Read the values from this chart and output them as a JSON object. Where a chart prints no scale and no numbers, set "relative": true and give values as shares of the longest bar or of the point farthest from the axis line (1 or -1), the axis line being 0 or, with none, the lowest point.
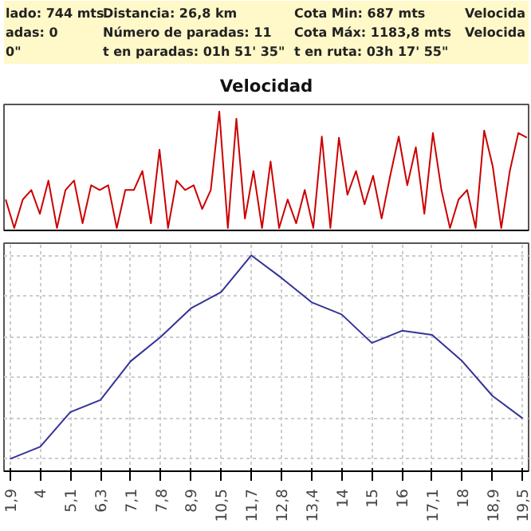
{
  "chart_data": [
    {
      "type": "other",
      "annotations": [
        "lado: 744 mts",
        "Distancia: 26,8 km",
        "Cota Min: 687 mts",
        "Velocida",
        "adas: 0",
        "Número de paradas: 11",
        "Cota Máx: 1183,8 mts",
        "Velocida",
        "0\"",
        "t en paradas: 01h 51' 35\"",
        "t en ruta: 03h 17' 55\""
      ]
    },
    {
      "type": "line",
      "title": "Velocidad",
      "relative": true,
      "grid": false,
      "categories": [
        null,
        null,
        null,
        null,
        null,
        null,
        null,
        null,
        null,
        null,
        null,
        null,
        null,
        null,
        null,
        null,
        null,
        null,
        null,
        null,
        null,
        null,
        null,
        null,
        null,
        null,
        null,
        null,
        null,
        null,
        null,
        null,
        null,
        null,
        null,
        null,
        null,
        null,
        null,
        null,
        null,
        null,
        null,
        null,
        null,
        null,
        null,
        null,
        null,
        null,
        null,
        null,
        null,
        null,
        null,
        null,
        null,
        null,
        null,
        null,
        null,
        null
      ],
      "tick_labels": false,
      "series": [
        {
          "color": "#cc0000",
          "values": [
            0.26,
            0.02,
            0.26,
            0.34,
            0.14,
            0.42,
            0.02,
            0.34,
            0.42,
            0.06,
            0.38,
            0.34,
            0.38,
            0.02,
            0.34,
            0.34,
            0.5,
            0.06,
            0.68,
            0.02,
            0.42,
            0.34,
            0.38,
            0.18,
            0.34,
            1,
            0.02,
            0.94,
            0.1,
            0.5,
            0.02,
            0.58,
            0.02,
            0.26,
            0.06,
            0.34,
            0.02,
            0.79,
            0.02,
            0.78,
            0.3,
            0.5,
            0.22,
            0.46,
            0.1,
            0.46,
            0.79,
            0.38,
            0.7,
            0.14,
            0.82,
            0.34,
            0.02,
            0.26,
            0.34,
            0.02,
            0.84,
            0.54,
            0.02,
            0.5,
            0.82,
            0.78
          ]
        }
      ]
    },
    {
      "type": "line",
      "relative": true,
      "grid": true,
      "tick_labels": "x",
      "categories": [
        "1,9",
        "4",
        "5,1",
        "6,3",
        "7,1",
        "7,8",
        "8,9",
        "10,5",
        "11,7",
        "12,8",
        "13,4",
        "14",
        "15",
        "16",
        "17,1",
        "18",
        "18,9",
        "19,5"
      ],
      "series": [
        {
          "color": "#333399",
          "values": [
            0,
            0.06,
            0.23,
            0.29,
            0.48,
            0.6,
            0.74,
            0.82,
            1,
            0.89,
            0.77,
            0.71,
            0.57,
            0.63,
            0.61,
            0.48,
            0.31,
            0.2
          ]
        }
      ]
    }
  ]
}
